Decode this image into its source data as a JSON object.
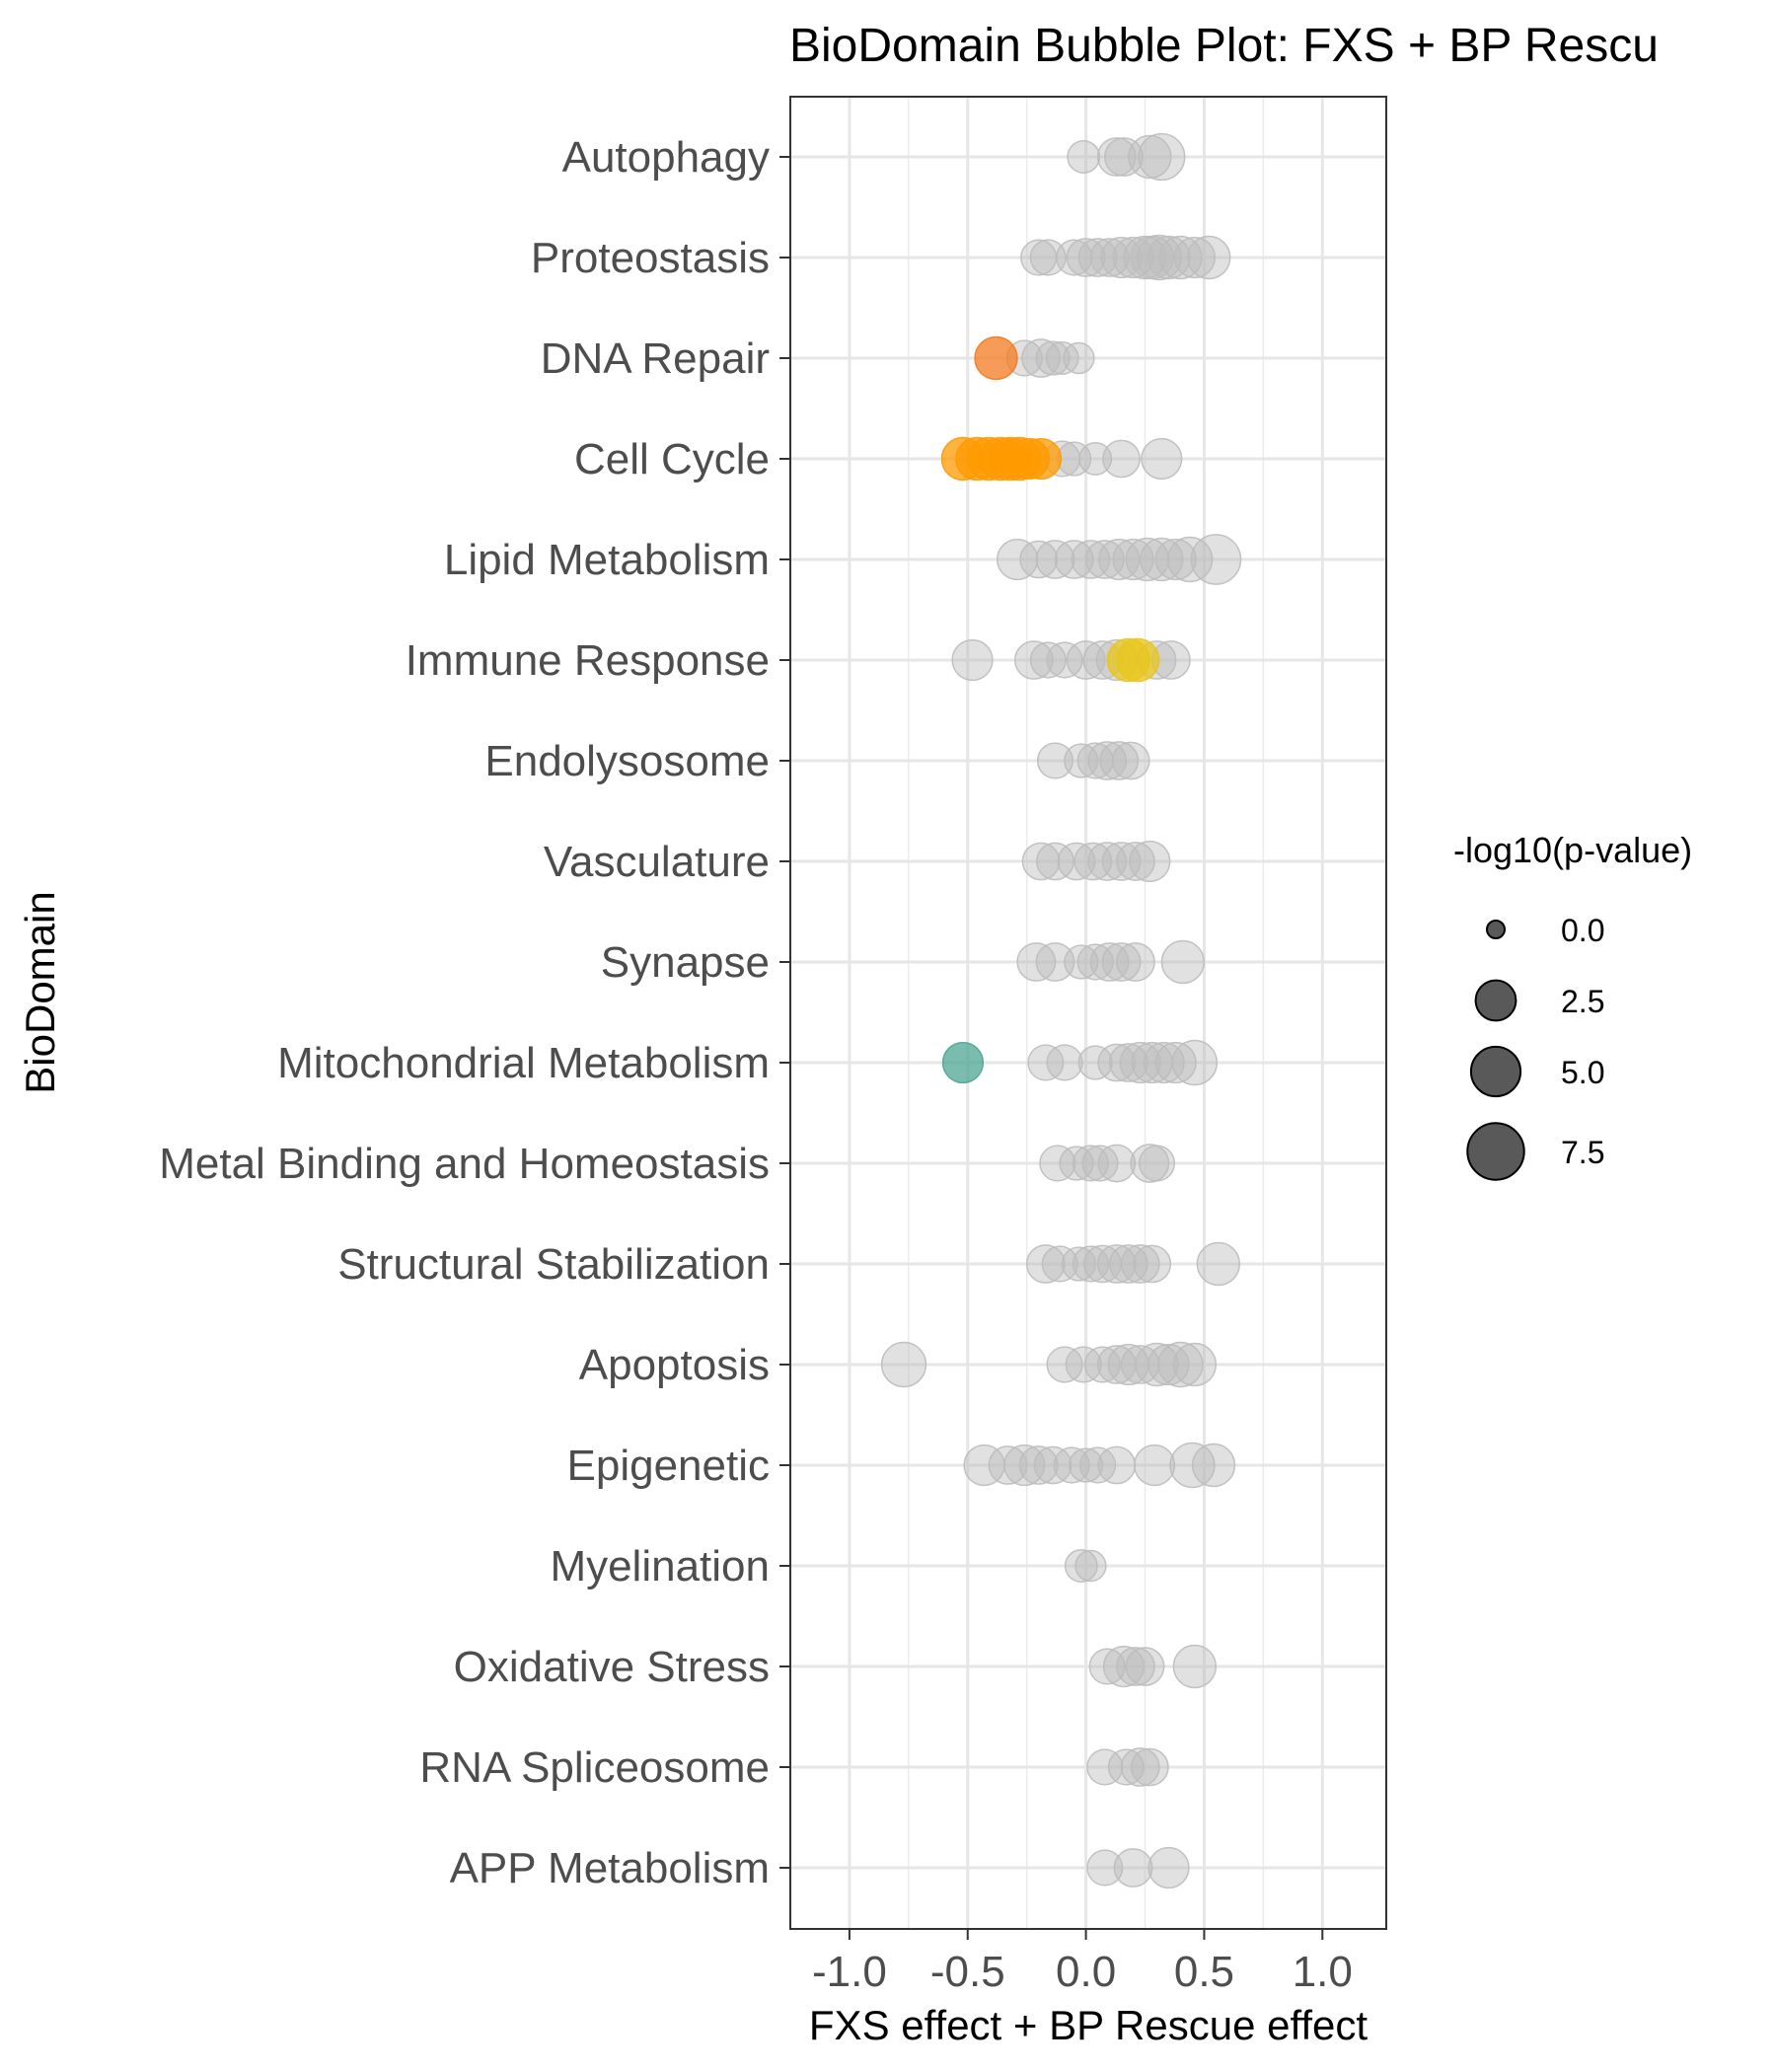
{
  "chart_data": {
    "type": "scatter",
    "title": "BioDomain Bubble Plot: FXS + BP Rescu",
    "xlabel": "FXS effect + BP Rescue effect",
    "ylabel": "BioDomain",
    "xlim": [
      -1.25,
      1.27
    ],
    "x_ticks": [
      "-1.0",
      "-0.5",
      "0.0",
      "0.5",
      "1.0"
    ],
    "x_tick_values": [
      -1.0,
      -0.5,
      0.0,
      0.5,
      1.0
    ],
    "grid": true,
    "legend_position": "right",
    "legend": {
      "title": "-log10(p-value)",
      "entries": [
        {
          "label": "0.0",
          "value": 0.0
        },
        {
          "label": "2.5",
          "value": 2.5
        },
        {
          "label": "5.0",
          "value": 5.0
        },
        {
          "label": "7.5",
          "value": 7.5
        }
      ]
    },
    "categories": [
      "Autophagy",
      "Proteostasis",
      "DNA Repair",
      "Cell Cycle",
      "Lipid Metabolism",
      "Immune Response",
      "Endolysosome",
      "Vasculature",
      "Synapse",
      "Mitochondrial Metabolism",
      "Metal Binding and Homeostasis",
      "Structural Stabilization",
      "Apoptosis",
      "Epigenetic",
      "Myelination",
      "Oxidative Stress",
      "RNA Spliceosome",
      "APP Metabolism"
    ],
    "colors": {
      "default": "#bdbdbd",
      "highlight_orange": "#ff9900",
      "highlight_orange_dark": "#f37b20",
      "highlight_yellow": "#e8c51c",
      "highlight_teal": "#4ea693"
    },
    "points": [
      {
        "category": "Autophagy",
        "x": -0.01,
        "p": 1.0
      },
      {
        "category": "Autophagy",
        "x": 0.13,
        "p": 2.0
      },
      {
        "category": "Autophagy",
        "x": 0.16,
        "p": 2.0
      },
      {
        "category": "Autophagy",
        "x": 0.27,
        "p": 3.0
      },
      {
        "category": "Autophagy",
        "x": 0.32,
        "p": 4.0
      },
      {
        "category": "Proteostasis",
        "x": -0.2,
        "p": 1.5
      },
      {
        "category": "Proteostasis",
        "x": -0.16,
        "p": 1.5
      },
      {
        "category": "Proteostasis",
        "x": -0.05,
        "p": 1.5
      },
      {
        "category": "Proteostasis",
        "x": 0.0,
        "p": 2.0
      },
      {
        "category": "Proteostasis",
        "x": 0.05,
        "p": 2.0
      },
      {
        "category": "Proteostasis",
        "x": 0.1,
        "p": 2.0
      },
      {
        "category": "Proteostasis",
        "x": 0.15,
        "p": 2.5
      },
      {
        "category": "Proteostasis",
        "x": 0.2,
        "p": 2.5
      },
      {
        "category": "Proteostasis",
        "x": 0.25,
        "p": 3.0
      },
      {
        "category": "Proteostasis",
        "x": 0.28,
        "p": 3.0
      },
      {
        "category": "Proteostasis",
        "x": 0.31,
        "p": 3.5
      },
      {
        "category": "Proteostasis",
        "x": 0.35,
        "p": 3.0
      },
      {
        "category": "Proteostasis",
        "x": 0.4,
        "p": 3.0
      },
      {
        "category": "Proteostasis",
        "x": 0.46,
        "p": 2.5
      },
      {
        "category": "Proteostasis",
        "x": 0.52,
        "p": 3.0
      },
      {
        "category": "DNA Repair",
        "x": -0.38,
        "p": 3.0,
        "color": "highlight_orange_dark"
      },
      {
        "category": "DNA Repair",
        "x": -0.26,
        "p": 1.5
      },
      {
        "category": "DNA Repair",
        "x": -0.19,
        "p": 2.0
      },
      {
        "category": "DNA Repair",
        "x": -0.14,
        "p": 1.2
      },
      {
        "category": "DNA Repair",
        "x": -0.1,
        "p": 1.0
      },
      {
        "category": "DNA Repair",
        "x": -0.03,
        "p": 0.8
      },
      {
        "category": "Cell Cycle",
        "x": -0.52,
        "p": 3.0,
        "color": "highlight_orange"
      },
      {
        "category": "Cell Cycle",
        "x": -0.46,
        "p": 3.0,
        "color": "highlight_orange"
      },
      {
        "category": "Cell Cycle",
        "x": -0.41,
        "p": 3.0,
        "color": "highlight_orange"
      },
      {
        "category": "Cell Cycle",
        "x": -0.36,
        "p": 3.0,
        "color": "highlight_orange"
      },
      {
        "category": "Cell Cycle",
        "x": -0.32,
        "p": 3.0,
        "color": "highlight_orange"
      },
      {
        "category": "Cell Cycle",
        "x": -0.28,
        "p": 3.0,
        "color": "highlight_orange"
      },
      {
        "category": "Cell Cycle",
        "x": -0.24,
        "p": 2.5,
        "color": "highlight_orange"
      },
      {
        "category": "Cell Cycle",
        "x": -0.19,
        "p": 2.5,
        "color": "highlight_orange"
      },
      {
        "category": "Cell Cycle",
        "x": -0.1,
        "p": 1.5
      },
      {
        "category": "Cell Cycle",
        "x": -0.05,
        "p": 1.2
      },
      {
        "category": "Cell Cycle",
        "x": 0.04,
        "p": 1.0
      },
      {
        "category": "Cell Cycle",
        "x": 0.15,
        "p": 1.8
      },
      {
        "category": "Cell Cycle",
        "x": 0.32,
        "p": 2.5
      },
      {
        "category": "Lipid Metabolism",
        "x": -0.29,
        "p": 2.5
      },
      {
        "category": "Lipid Metabolism",
        "x": -0.2,
        "p": 1.8
      },
      {
        "category": "Lipid Metabolism",
        "x": -0.13,
        "p": 2.0
      },
      {
        "category": "Lipid Metabolism",
        "x": -0.05,
        "p": 2.0
      },
      {
        "category": "Lipid Metabolism",
        "x": 0.02,
        "p": 2.0
      },
      {
        "category": "Lipid Metabolism",
        "x": 0.08,
        "p": 2.0
      },
      {
        "category": "Lipid Metabolism",
        "x": 0.14,
        "p": 2.5
      },
      {
        "category": "Lipid Metabolism",
        "x": 0.2,
        "p": 2.5
      },
      {
        "category": "Lipid Metabolism",
        "x": 0.26,
        "p": 3.0
      },
      {
        "category": "Lipid Metabolism",
        "x": 0.32,
        "p": 3.0
      },
      {
        "category": "Lipid Metabolism",
        "x": 0.38,
        "p": 2.5
      },
      {
        "category": "Lipid Metabolism",
        "x": 0.44,
        "p": 3.5
      },
      {
        "category": "Lipid Metabolism",
        "x": 0.55,
        "p": 5.0
      },
      {
        "category": "Immune Response",
        "x": -0.48,
        "p": 2.5
      },
      {
        "category": "Immune Response",
        "x": -0.22,
        "p": 2.0
      },
      {
        "category": "Immune Response",
        "x": -0.16,
        "p": 1.5
      },
      {
        "category": "Immune Response",
        "x": -0.09,
        "p": 1.5
      },
      {
        "category": "Immune Response",
        "x": 0.0,
        "p": 2.0
      },
      {
        "category": "Immune Response",
        "x": 0.07,
        "p": 2.0
      },
      {
        "category": "Immune Response",
        "x": 0.13,
        "p": 2.5
      },
      {
        "category": "Immune Response",
        "x": 0.18,
        "p": 3.0,
        "color": "highlight_yellow"
      },
      {
        "category": "Immune Response",
        "x": 0.22,
        "p": 3.0,
        "color": "highlight_yellow"
      },
      {
        "category": "Immune Response",
        "x": 0.3,
        "p": 2.0
      },
      {
        "category": "Immune Response",
        "x": 0.36,
        "p": 2.0
      },
      {
        "category": "Endolysosome",
        "x": -0.13,
        "p": 1.5
      },
      {
        "category": "Endolysosome",
        "x": -0.02,
        "p": 1.2
      },
      {
        "category": "Endolysosome",
        "x": 0.04,
        "p": 1.5
      },
      {
        "category": "Endolysosome",
        "x": 0.09,
        "p": 2.0
      },
      {
        "category": "Endolysosome",
        "x": 0.14,
        "p": 2.0
      },
      {
        "category": "Endolysosome",
        "x": 0.19,
        "p": 1.8
      },
      {
        "category": "Vasculature",
        "x": -0.19,
        "p": 1.8
      },
      {
        "category": "Vasculature",
        "x": -0.13,
        "p": 1.8
      },
      {
        "category": "Vasculature",
        "x": -0.04,
        "p": 1.8
      },
      {
        "category": "Vasculature",
        "x": 0.03,
        "p": 1.8
      },
      {
        "category": "Vasculature",
        "x": 0.09,
        "p": 2.0
      },
      {
        "category": "Vasculature",
        "x": 0.15,
        "p": 2.0
      },
      {
        "category": "Vasculature",
        "x": 0.21,
        "p": 2.0
      },
      {
        "category": "Vasculature",
        "x": 0.27,
        "p": 2.5
      },
      {
        "category": "Synapse",
        "x": -0.21,
        "p": 2.0
      },
      {
        "category": "Synapse",
        "x": -0.13,
        "p": 2.0
      },
      {
        "category": "Synapse",
        "x": -0.02,
        "p": 1.2
      },
      {
        "category": "Synapse",
        "x": 0.04,
        "p": 1.5
      },
      {
        "category": "Synapse",
        "x": 0.1,
        "p": 2.0
      },
      {
        "category": "Synapse",
        "x": 0.15,
        "p": 2.0
      },
      {
        "category": "Synapse",
        "x": 0.21,
        "p": 2.0
      },
      {
        "category": "Synapse",
        "x": 0.41,
        "p": 3.0
      },
      {
        "category": "Mitochondrial Metabolism",
        "x": -0.52,
        "p": 2.5,
        "color": "highlight_teal"
      },
      {
        "category": "Mitochondrial Metabolism",
        "x": -0.17,
        "p": 1.5
      },
      {
        "category": "Mitochondrial Metabolism",
        "x": -0.09,
        "p": 1.5
      },
      {
        "category": "Mitochondrial Metabolism",
        "x": 0.04,
        "p": 1.2
      },
      {
        "category": "Mitochondrial Metabolism",
        "x": 0.13,
        "p": 1.8
      },
      {
        "category": "Mitochondrial Metabolism",
        "x": 0.18,
        "p": 2.0
      },
      {
        "category": "Mitochondrial Metabolism",
        "x": 0.23,
        "p": 2.5
      },
      {
        "category": "Mitochondrial Metabolism",
        "x": 0.28,
        "p": 2.5
      },
      {
        "category": "Mitochondrial Metabolism",
        "x": 0.33,
        "p": 2.5
      },
      {
        "category": "Mitochondrial Metabolism",
        "x": 0.38,
        "p": 2.5
      },
      {
        "category": "Mitochondrial Metabolism",
        "x": 0.46,
        "p": 3.5
      },
      {
        "category": "Metal Binding and Homeostasis",
        "x": -0.12,
        "p": 1.5
      },
      {
        "category": "Metal Binding and Homeostasis",
        "x": -0.04,
        "p": 1.2
      },
      {
        "category": "Metal Binding and Homeostasis",
        "x": 0.02,
        "p": 1.5
      },
      {
        "category": "Metal Binding and Homeostasis",
        "x": 0.06,
        "p": 1.5
      },
      {
        "category": "Metal Binding and Homeostasis",
        "x": 0.13,
        "p": 1.8
      },
      {
        "category": "Metal Binding and Homeostasis",
        "x": 0.27,
        "p": 2.0
      },
      {
        "category": "Metal Binding and Homeostasis",
        "x": 0.3,
        "p": 1.5
      },
      {
        "category": "Structural Stabilization",
        "x": -0.17,
        "p": 2.0
      },
      {
        "category": "Structural Stabilization",
        "x": -0.11,
        "p": 1.5
      },
      {
        "category": "Structural Stabilization",
        "x": -0.03,
        "p": 1.2
      },
      {
        "category": "Structural Stabilization",
        "x": 0.02,
        "p": 1.5
      },
      {
        "category": "Structural Stabilization",
        "x": 0.07,
        "p": 1.8
      },
      {
        "category": "Structural Stabilization",
        "x": 0.13,
        "p": 2.0
      },
      {
        "category": "Structural Stabilization",
        "x": 0.18,
        "p": 2.0
      },
      {
        "category": "Structural Stabilization",
        "x": 0.23,
        "p": 2.0
      },
      {
        "category": "Structural Stabilization",
        "x": 0.28,
        "p": 1.8
      },
      {
        "category": "Structural Stabilization",
        "x": 0.56,
        "p": 3.0
      },
      {
        "category": "Apoptosis",
        "x": -0.77,
        "p": 3.5
      },
      {
        "category": "Apoptosis",
        "x": -0.09,
        "p": 1.5
      },
      {
        "category": "Apoptosis",
        "x": -0.01,
        "p": 1.5
      },
      {
        "category": "Apoptosis",
        "x": 0.07,
        "p": 1.5
      },
      {
        "category": "Apoptosis",
        "x": 0.13,
        "p": 2.0
      },
      {
        "category": "Apoptosis",
        "x": 0.18,
        "p": 2.5
      },
      {
        "category": "Apoptosis",
        "x": 0.23,
        "p": 2.0
      },
      {
        "category": "Apoptosis",
        "x": 0.3,
        "p": 3.0
      },
      {
        "category": "Apoptosis",
        "x": 0.35,
        "p": 2.5
      },
      {
        "category": "Apoptosis",
        "x": 0.4,
        "p": 3.5
      },
      {
        "category": "Apoptosis",
        "x": 0.46,
        "p": 3.0
      },
      {
        "category": "Epigenetic",
        "x": -0.43,
        "p": 2.5
      },
      {
        "category": "Epigenetic",
        "x": -0.33,
        "p": 2.0
      },
      {
        "category": "Epigenetic",
        "x": -0.26,
        "p": 2.5
      },
      {
        "category": "Epigenetic",
        "x": -0.2,
        "p": 2.0
      },
      {
        "category": "Epigenetic",
        "x": -0.14,
        "p": 1.8
      },
      {
        "category": "Epigenetic",
        "x": -0.06,
        "p": 1.5
      },
      {
        "category": "Epigenetic",
        "x": 0.0,
        "p": 1.2
      },
      {
        "category": "Epigenetic",
        "x": 0.05,
        "p": 1.5
      },
      {
        "category": "Epigenetic",
        "x": 0.13,
        "p": 1.8
      },
      {
        "category": "Epigenetic",
        "x": 0.29,
        "p": 2.5
      },
      {
        "category": "Epigenetic",
        "x": 0.45,
        "p": 3.5
      },
      {
        "category": "Epigenetic",
        "x": 0.54,
        "p": 3.0
      },
      {
        "category": "Myelination",
        "x": -0.02,
        "p": 1.0
      },
      {
        "category": "Myelination",
        "x": 0.02,
        "p": 0.8
      },
      {
        "category": "Oxidative Stress",
        "x": 0.09,
        "p": 1.5
      },
      {
        "category": "Oxidative Stress",
        "x": 0.16,
        "p": 2.5
      },
      {
        "category": "Oxidative Stress",
        "x": 0.21,
        "p": 2.0
      },
      {
        "category": "Oxidative Stress",
        "x": 0.25,
        "p": 2.0
      },
      {
        "category": "Oxidative Stress",
        "x": 0.46,
        "p": 3.0
      },
      {
        "category": "RNA Spliceosome",
        "x": 0.08,
        "p": 1.5
      },
      {
        "category": "RNA Spliceosome",
        "x": 0.17,
        "p": 1.5
      },
      {
        "category": "RNA Spliceosome",
        "x": 0.23,
        "p": 2.0
      },
      {
        "category": "RNA Spliceosome",
        "x": 0.27,
        "p": 1.8
      },
      {
        "category": "APP Metabolism",
        "x": 0.08,
        "p": 1.5
      },
      {
        "category": "APP Metabolism",
        "x": 0.2,
        "p": 2.0
      },
      {
        "category": "APP Metabolism",
        "x": 0.35,
        "p": 2.5
      }
    ]
  }
}
